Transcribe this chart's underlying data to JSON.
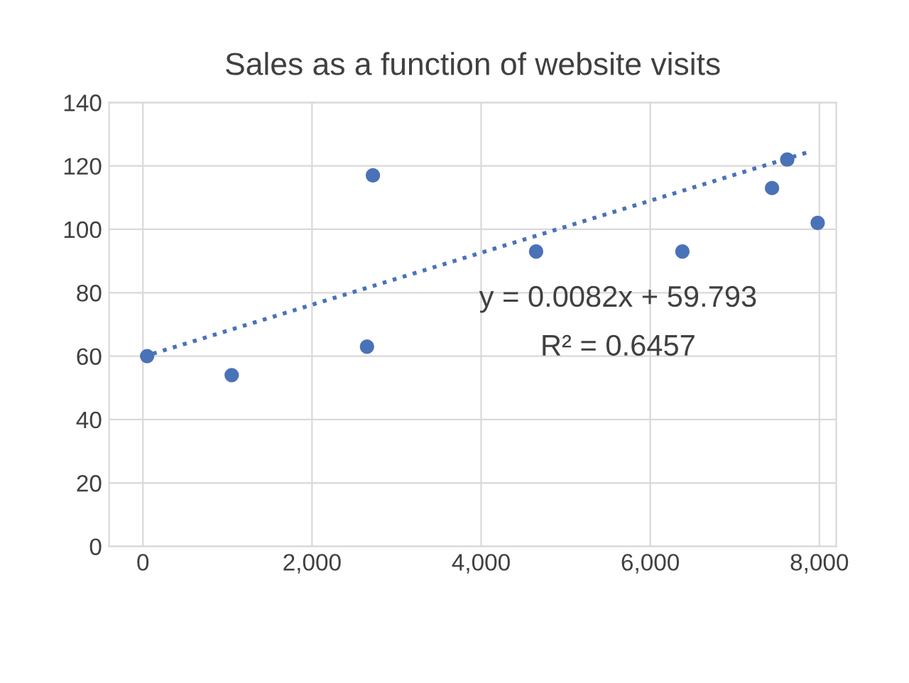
{
  "chart_data": {
    "type": "scatter",
    "title": "Sales as a function of website visits",
    "series": [
      {
        "color": "#4a72b8",
        "marker": "circle",
        "x": [
          50,
          1050,
          2720,
          2650,
          4650,
          6380,
          7440,
          7620,
          7980
        ],
        "values": [
          60,
          54,
          117,
          63,
          93,
          93,
          113,
          122,
          102
        ]
      },
      {
        "type": "line",
        "color": "#4a72b8",
        "line_style": "dotted",
        "x": [
          0,
          7900
        ],
        "values": [
          59.8,
          124.6
        ]
      }
    ],
    "xlim": [
      -400,
      8200
    ],
    "ylim": [
      0,
      140
    ],
    "xticks": [
      0,
      {
        "value": 2000,
        "label": "2,000"
      },
      {
        "value": 4000,
        "label": "4,000"
      },
      {
        "value": 6000,
        "label": "6,000"
      },
      {
        "value": 8000,
        "label": "8,000"
      }
    ],
    "yticks": [
      0,
      20,
      40,
      60,
      80,
      100,
      120,
      140
    ],
    "grid": true,
    "annotations": [
      "y = 0.0082x + 59.793",
      "R² = 0.6457"
    ]
  }
}
